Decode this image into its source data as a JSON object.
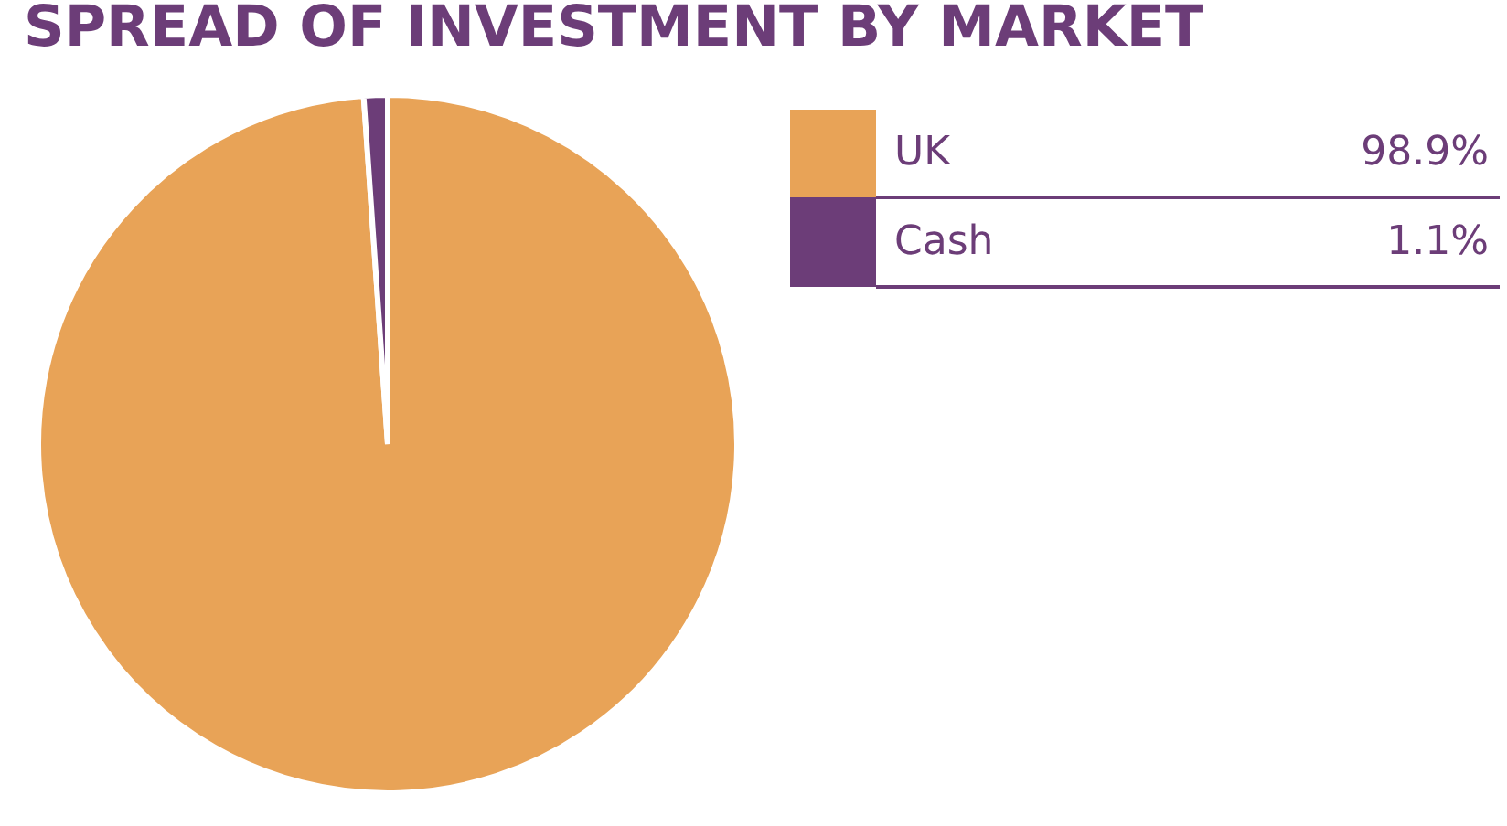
{
  "chart_data": {
    "type": "pie",
    "title": "SPREAD OF INVESTMENT BY MARKET",
    "categories": [
      "UK",
      "Cash"
    ],
    "values": [
      98.9,
      1.1
    ],
    "colors": [
      "#e8a357",
      "#6c3d78"
    ],
    "value_labels": [
      "98.9%",
      "1.1%"
    ],
    "legend": "top right"
  }
}
